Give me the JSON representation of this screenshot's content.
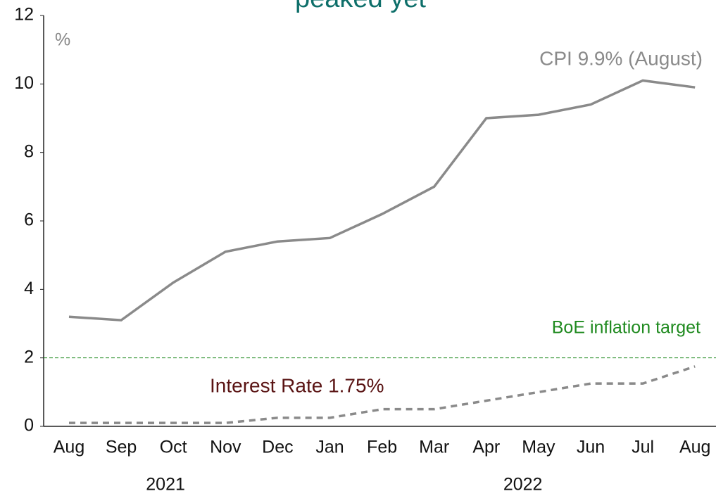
{
  "chart_data": {
    "type": "line",
    "title": "peaked yet",
    "title_color": "#0e6f6a",
    "unit_label": "%",
    "categories": [
      "Aug",
      "Sep",
      "Oct",
      "Nov",
      "Dec",
      "Jan",
      "Feb",
      "Mar",
      "Apr",
      "May",
      "Jun",
      "Jul",
      "Aug"
    ],
    "year_labels": [
      "2021",
      "2022"
    ],
    "series": [
      {
        "color": "#8a8a8a",
        "dash": "solid",
        "values": [
          3.2,
          3.1,
          4.2,
          5.1,
          5.4,
          5.5,
          6.2,
          7.0,
          9.0,
          9.1,
          9.4,
          10.1,
          9.9
        ]
      },
      {
        "color": "#8a8a8a",
        "dash": "dashed",
        "values": [
          0.1,
          0.1,
          0.1,
          0.1,
          0.25,
          0.25,
          0.5,
          0.5,
          0.75,
          1.0,
          1.25,
          1.25,
          1.75
        ]
      }
    ],
    "annotations": [
      {
        "text": "CPI 9.9% (August)",
        "color": "#8a8a8a"
      },
      {
        "text": "Interest Rate 1.75%",
        "color": "#5a1414"
      }
    ],
    "reference_line": {
      "value": 2,
      "label": "BoE inflation target",
      "color": "#1f8a1f"
    },
    "ylim": [
      0,
      12
    ],
    "yticks": [
      0,
      2,
      4,
      6,
      8,
      10,
      12
    ]
  }
}
